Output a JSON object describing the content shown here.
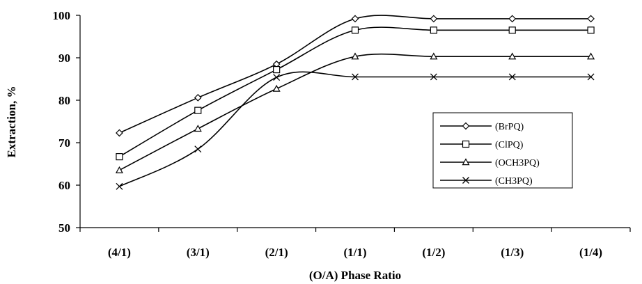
{
  "chart_data": {
    "type": "line",
    "categories": [
      "(4/1)",
      "(3/1)",
      "(2/1)",
      "(1/1)",
      "(1/2)",
      "(1/3)",
      "(1/4)"
    ],
    "xlabel": "(O/A) Phase Ratio",
    "ylabel": "Extraction, %",
    "ylim": [
      50,
      100
    ],
    "yticks": [
      50,
      60,
      70,
      80,
      90,
      100
    ],
    "grid": false,
    "legend_placement": "right",
    "series": [
      {
        "name": "(BrPQ)",
        "marker": "diamond",
        "values": [
          72.3,
          80.6,
          88.5,
          99.2,
          99.2,
          99.2,
          99.2
        ]
      },
      {
        "name": "(ClPQ)",
        "marker": "square",
        "values": [
          66.7,
          77.6,
          87.2,
          96.5,
          96.5,
          96.5,
          96.5
        ]
      },
      {
        "name": "(OCH3PQ)",
        "marker": "triangle",
        "values": [
          63.5,
          73.3,
          82.7,
          90.3,
          90.3,
          90.3,
          90.3
        ]
      },
      {
        "name": "(CH3PQ)",
        "marker": "x",
        "values": [
          59.7,
          68.5,
          85.4,
          85.5,
          85.5,
          85.5,
          85.5
        ]
      }
    ]
  }
}
